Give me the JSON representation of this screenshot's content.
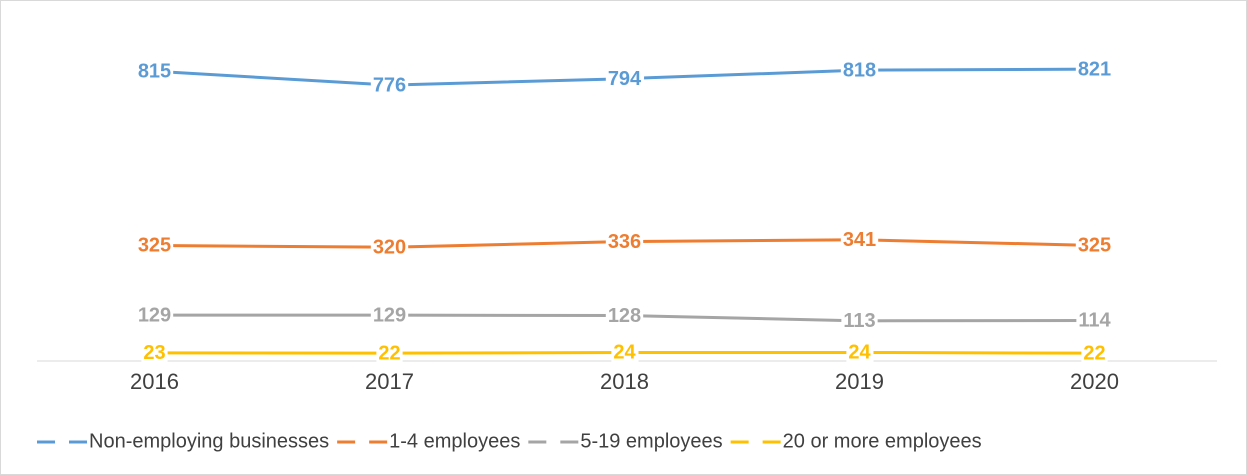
{
  "chart_data": {
    "type": "line",
    "categories": [
      "2016",
      "2017",
      "2018",
      "2019",
      "2020"
    ],
    "series": [
      {
        "name": "Non-employing businesses",
        "color": "#5b9bd5",
        "values": [
          815,
          776,
          794,
          818,
          821
        ]
      },
      {
        "name": "1-4 employees",
        "color": "#ed7d31",
        "values": [
          325,
          320,
          336,
          341,
          325
        ]
      },
      {
        "name": "5-19 employees",
        "color": "#a5a5a5",
        "values": [
          129,
          129,
          128,
          113,
          114
        ]
      },
      {
        "name": "20 or more employees",
        "color": "#ffc000",
        "values": [
          23,
          22,
          24,
          24,
          22
        ]
      }
    ],
    "ylim": [
      0,
      900
    ],
    "legend": "bottom"
  }
}
